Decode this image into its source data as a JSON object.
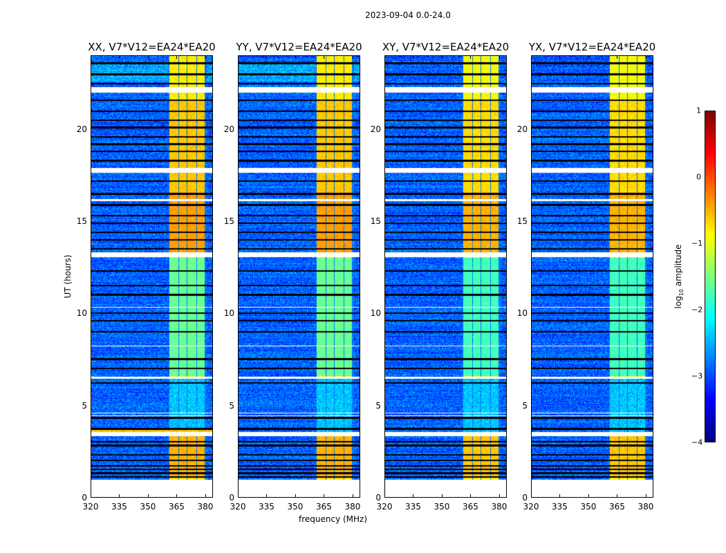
{
  "chart_data": {
    "type": "heatmap",
    "title": "2023-09-04 0.0-24.0",
    "xlabel": "frequency (MHz)",
    "ylabel": "UT (hours)",
    "xlim": [
      320,
      384
    ],
    "ylim": [
      0,
      24
    ],
    "xticks": [
      "320",
      "335",
      "350",
      "365",
      "380"
    ],
    "yticks": [
      "0",
      "5",
      "10",
      "15",
      "20"
    ],
    "panels": [
      {
        "title": "XX, V7*V12=EA24*EA20",
        "pol": "XX"
      },
      {
        "title": "YY, V7*V12=EA24*EA20",
        "pol": "YY"
      },
      {
        "title": "XY, V7*V12=EA24*EA20",
        "pol": "XY"
      },
      {
        "title": "YX, V7*V12=EA24*EA20",
        "pol": "YX"
      }
    ],
    "colorbar": {
      "label": "log10 amplitude",
      "label_main": "log",
      "label_sub": "10",
      "label_rest": " amplitude",
      "colormap": "jet",
      "range": [
        -4,
        1
      ],
      "ticks": [
        "1",
        "0",
        "−1",
        "−2",
        "−3",
        "−4"
      ]
    },
    "data_time_range": [
      0.95,
      24
    ],
    "background_level": -2.9,
    "bright_channels_mhz": [
      [
        361.5,
        366
      ],
      [
        366.5,
        370.5
      ],
      [
        371,
        375.5
      ],
      [
        376,
        380
      ]
    ],
    "bright_level": -0.8,
    "flagged_blank_hours": [
      [
        3.3,
        3.55
      ],
      [
        4.4,
        4.45
      ],
      [
        4.55,
        4.6
      ],
      [
        6.45,
        6.55
      ],
      [
        13.05,
        13.3
      ],
      [
        16.1,
        16.2
      ],
      [
        17.65,
        17.9
      ],
      [
        22.0,
        22.3
      ],
      [
        8.2,
        8.25
      ],
      [
        10.3,
        10.35
      ]
    ],
    "zero_rows_hours": [
      1.1,
      1.3,
      1.5,
      1.7,
      2.0,
      2.3,
      2.8,
      3.0,
      3.7,
      4.3,
      6.2,
      7.0,
      7.5,
      9.0,
      9.6,
      10.0,
      11.0,
      11.5,
      12.3,
      13.5,
      14.0,
      14.4,
      14.9,
      15.3,
      15.9,
      16.5,
      17.2,
      18.3,
      18.8,
      19.2,
      19.6,
      20.1,
      20.5,
      21.0,
      21.6,
      22.5,
      23.0,
      23.6
    ],
    "enhanced_hours": [
      [
        13.3,
        16.6,
        0.4
      ],
      [
        1.0,
        3.3,
        0.3
      ],
      [
        16.6,
        21.6,
        0.2
      ]
    ]
  }
}
